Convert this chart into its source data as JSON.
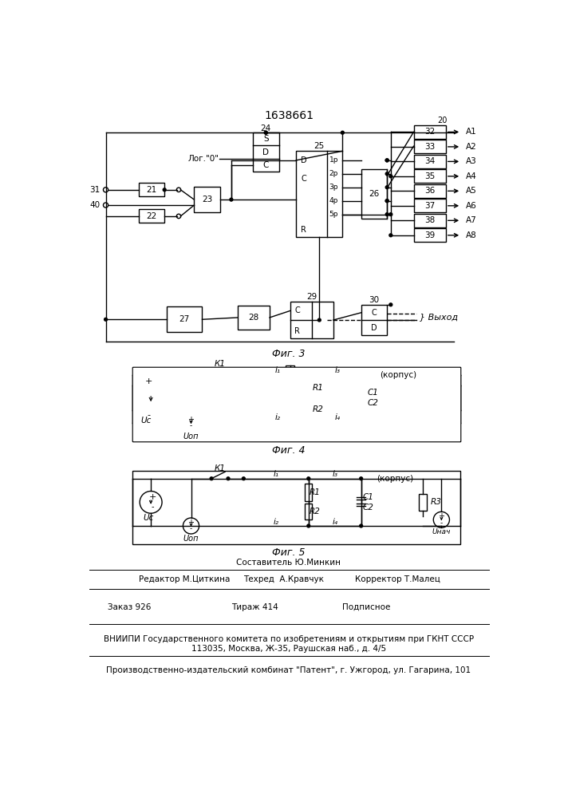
{
  "title": "1638661",
  "fig3_label": "Фиг. 3",
  "fig4_label": "Фиг. 4",
  "fig5_label": "Фиг. 5",
  "bg_color": "#ffffff",
  "line_color": "#000000",
  "footer_lines": [
    "Составитель Ю.Минкин",
    "Редактор М.Циткина",
    "Техред  А.Кравчук",
    "Корректор Т.Малец",
    "Заказ 926",
    "Тираж 414",
    "Подписное",
    "ВНИИПИ Государственного комитета по изобретениям и открытиям при ГКНТ СССР",
    "113035, Москва, Ж-35, Раушская наб., д. 4/5",
    "Производственно-издательский комбинат \"Патент\", г. Ужгород, ул. Гагарина, 101"
  ]
}
